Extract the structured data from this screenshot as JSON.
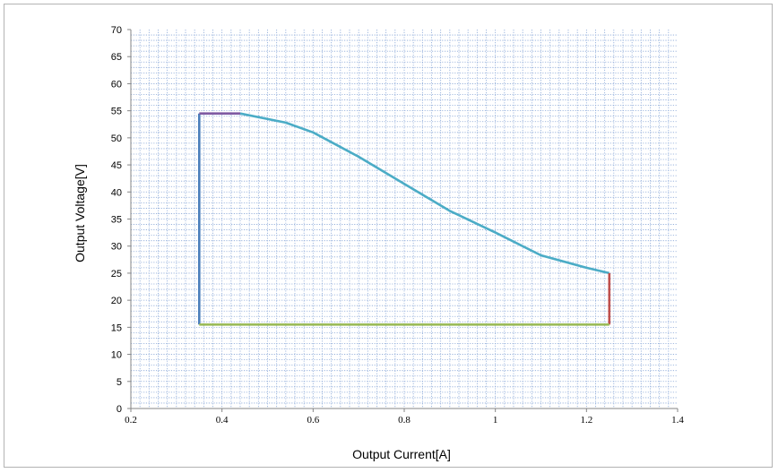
{
  "chart_data": {
    "type": "line",
    "title": "",
    "xlabel": "Output Current[A]",
    "ylabel": "Output Voltage[V]",
    "xlim": [
      0.2,
      1.4
    ],
    "ylim": [
      0,
      70
    ],
    "x_ticks": [
      "0.2",
      "0.4",
      "0.6",
      "0.8",
      "1",
      "1.2",
      "1.4"
    ],
    "y_ticks": [
      "0",
      "5",
      "10",
      "15",
      "20",
      "25",
      "30",
      "35",
      "40",
      "45",
      "50",
      "55",
      "60",
      "65",
      "70"
    ],
    "grid": true,
    "legend": "none",
    "series": [
      {
        "color": "#4a7ebb",
        "points": [
          [
            0.35,
            15.5
          ],
          [
            0.35,
            54.5
          ]
        ]
      },
      {
        "color": "#7f5aa2",
        "points": [
          [
            0.35,
            54.5
          ],
          [
            0.44,
            54.5
          ]
        ]
      },
      {
        "color": "#4bacc6",
        "points": [
          [
            0.44,
            54.5
          ],
          [
            0.54,
            52.8
          ],
          [
            0.6,
            51
          ],
          [
            0.7,
            46.5
          ],
          [
            0.8,
            41.5
          ],
          [
            0.9,
            36.5
          ],
          [
            1.0,
            32.5
          ],
          [
            1.1,
            28.3
          ],
          [
            1.2,
            26
          ],
          [
            1.25,
            25
          ]
        ]
      },
      {
        "color": "#c0504d",
        "points": [
          [
            1.25,
            25
          ],
          [
            1.25,
            15.5
          ]
        ]
      },
      {
        "color": "#9bbb59",
        "points": [
          [
            1.25,
            15.5
          ],
          [
            0.35,
            15.5
          ]
        ]
      }
    ]
  }
}
